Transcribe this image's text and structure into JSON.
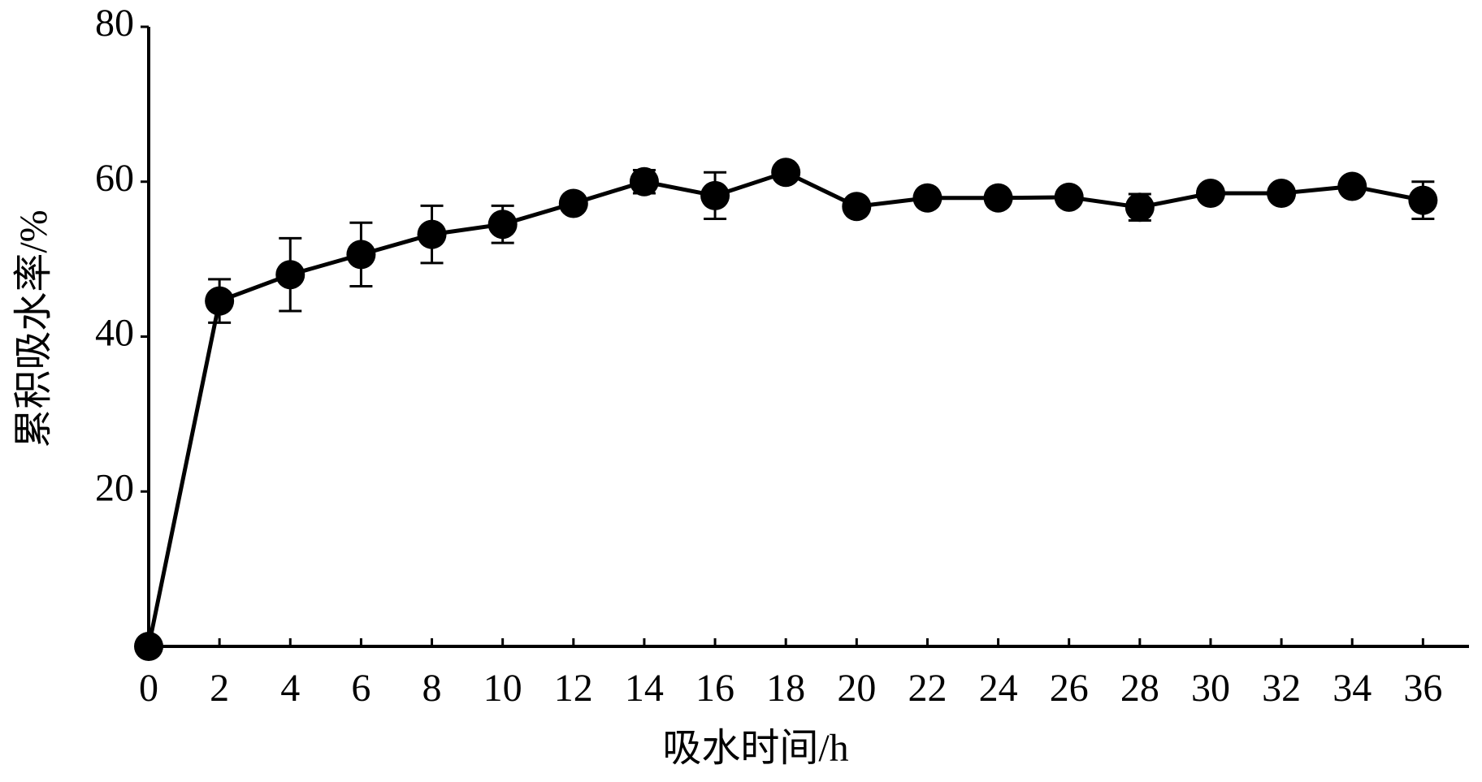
{
  "chart_data": {
    "type": "line",
    "x_label": "吸水时间/h",
    "y_label": "累积吸水率/%",
    "x": [
      0,
      2,
      4,
      6,
      8,
      10,
      12,
      14,
      16,
      18,
      20,
      22,
      24,
      26,
      28,
      30,
      32,
      34,
      36
    ],
    "values": [
      0,
      44.6,
      48.0,
      50.6,
      53.2,
      54.5,
      57.2,
      60.0,
      58.2,
      61.2,
      56.8,
      57.9,
      57.9,
      58.0,
      56.7,
      58.5,
      58.5,
      59.4,
      57.6
    ],
    "errors": [
      0,
      2.8,
      4.7,
      4.1,
      3.7,
      2.4,
      0.5,
      1.5,
      3.0,
      0.5,
      0.5,
      0.5,
      0.5,
      0.5,
      1.7,
      0.5,
      0.5,
      0.5,
      2.4
    ],
    "color": "#000000",
    "xlim": [
      0,
      37.3
    ],
    "xticks": [
      0,
      2,
      4,
      6,
      8,
      10,
      12,
      14,
      16,
      18,
      20,
      22,
      24,
      26,
      28,
      30,
      32,
      34,
      36
    ],
    "ylim": [
      0,
      80
    ],
    "yticks": [
      20,
      40,
      60,
      80
    ]
  }
}
